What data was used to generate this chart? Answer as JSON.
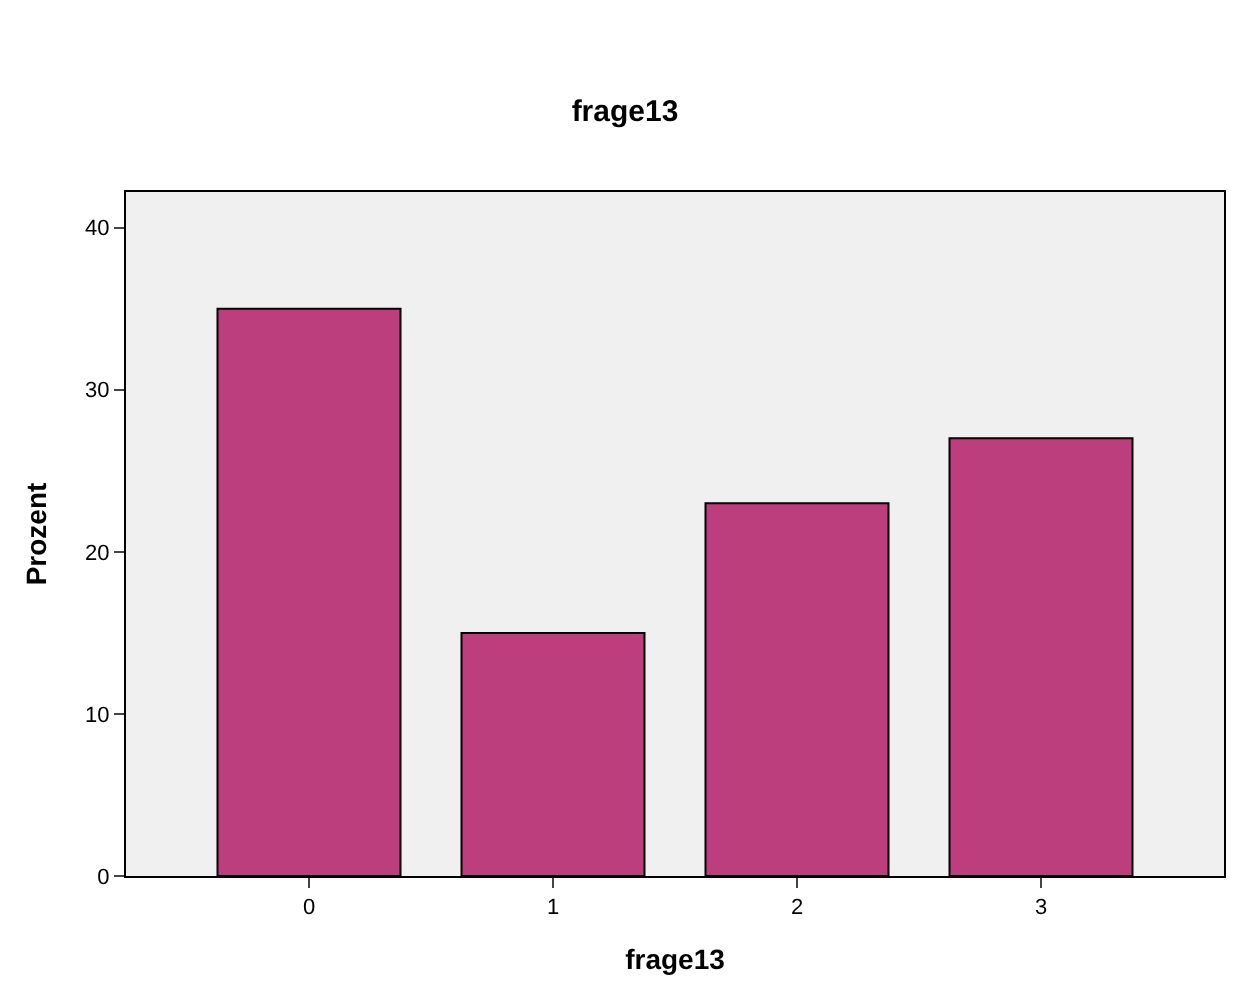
{
  "chart_data": {
    "type": "bar",
    "title": "frage13",
    "xlabel": "frage13",
    "ylabel": "Prozent",
    "categories": [
      "0",
      "1",
      "2",
      "3"
    ],
    "values": [
      35,
      15,
      23,
      27
    ],
    "color": "#bc3e7c",
    "ylim": [
      0,
      42.2
    ],
    "yticks": [
      0,
      10,
      20,
      30,
      40
    ],
    "grid": false,
    "legend": false
  }
}
